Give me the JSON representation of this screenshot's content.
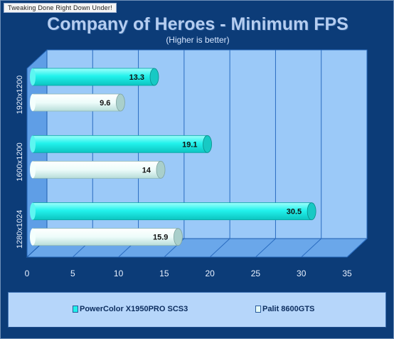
{
  "watermark": "Tweaking Done Right Down Under!",
  "chart_data": {
    "type": "bar",
    "orientation": "horizontal",
    "title": "Company of Heroes - Minimum FPS",
    "subtitle": "(Higher is better)",
    "categories": [
      "1920x1200",
      "1600x1200",
      "1280x1024"
    ],
    "series": [
      {
        "name": "PowerColor X1950PRO SCS3",
        "color": "#1ff0ea",
        "values": [
          13.3,
          19.1,
          30.5
        ]
      },
      {
        "name": "Palit 8600GTS",
        "color": "#e4fbf8",
        "values": [
          9.6,
          14,
          15.9
        ]
      }
    ],
    "x_ticks": [
      "0",
      "5",
      "10",
      "15",
      "20",
      "25",
      "30",
      "35"
    ],
    "xlim": [
      0,
      35
    ],
    "grid": true,
    "legend_position": "bottom"
  }
}
